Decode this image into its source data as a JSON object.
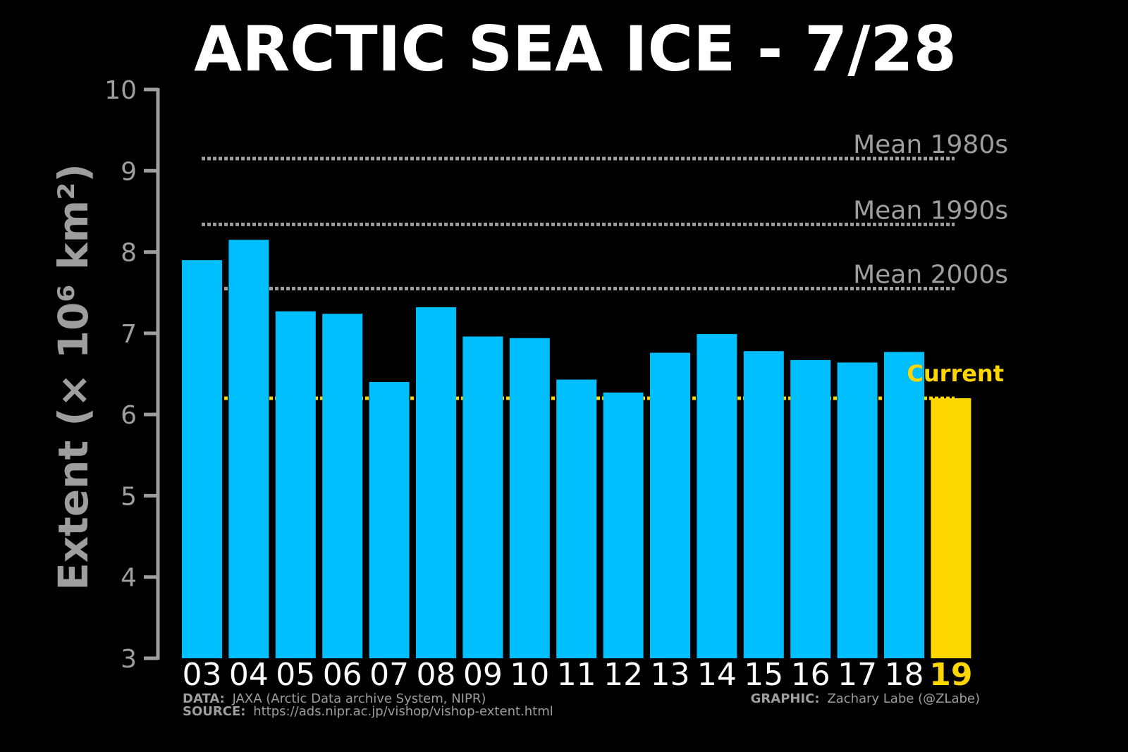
{
  "chart_data": {
    "type": "bar",
    "title": "ARCTIC SEA ICE - 7/28",
    "xlabel": "",
    "ylabel": "Extent (× 10⁶ km²)",
    "ylim": [
      3,
      10
    ],
    "yticks": [
      3,
      4,
      5,
      6,
      7,
      8,
      9,
      10
    ],
    "categories": [
      "03",
      "04",
      "05",
      "06",
      "07",
      "08",
      "09",
      "10",
      "11",
      "12",
      "13",
      "14",
      "15",
      "16",
      "17",
      "18",
      "19"
    ],
    "values": [
      7.9,
      8.15,
      7.27,
      7.24,
      6.4,
      7.32,
      6.96,
      6.94,
      6.43,
      6.27,
      6.76,
      6.99,
      6.78,
      6.67,
      6.64,
      6.77,
      6.2
    ],
    "highlight_category": "19",
    "reference_lines": [
      {
        "label": "Mean 1980s",
        "value": 9.15,
        "color": "#9e9e9e"
      },
      {
        "label": "Mean 1990s",
        "value": 8.34,
        "color": "#9e9e9e"
      },
      {
        "label": "Mean 2000s",
        "value": 7.55,
        "color": "#9e9e9e"
      },
      {
        "label": "Current",
        "value": 6.2,
        "color": "#ffd700"
      }
    ],
    "colors": {
      "background": "#000000",
      "bar": "#00bfff",
      "highlight": "#ffd700",
      "axis": "#9e9e9e",
      "text": "#ffffff"
    },
    "grid": false
  },
  "credits": {
    "data_label": "DATA:",
    "data_text": "JAXA (Arctic Data archive System, NIPR)",
    "source_label": "SOURCE:",
    "source_text": "https://ads.nipr.ac.jp/vishop/vishop-extent.html",
    "graphic_label": "GRAPHIC:",
    "graphic_text": "Zachary Labe (@ZLabe)"
  }
}
